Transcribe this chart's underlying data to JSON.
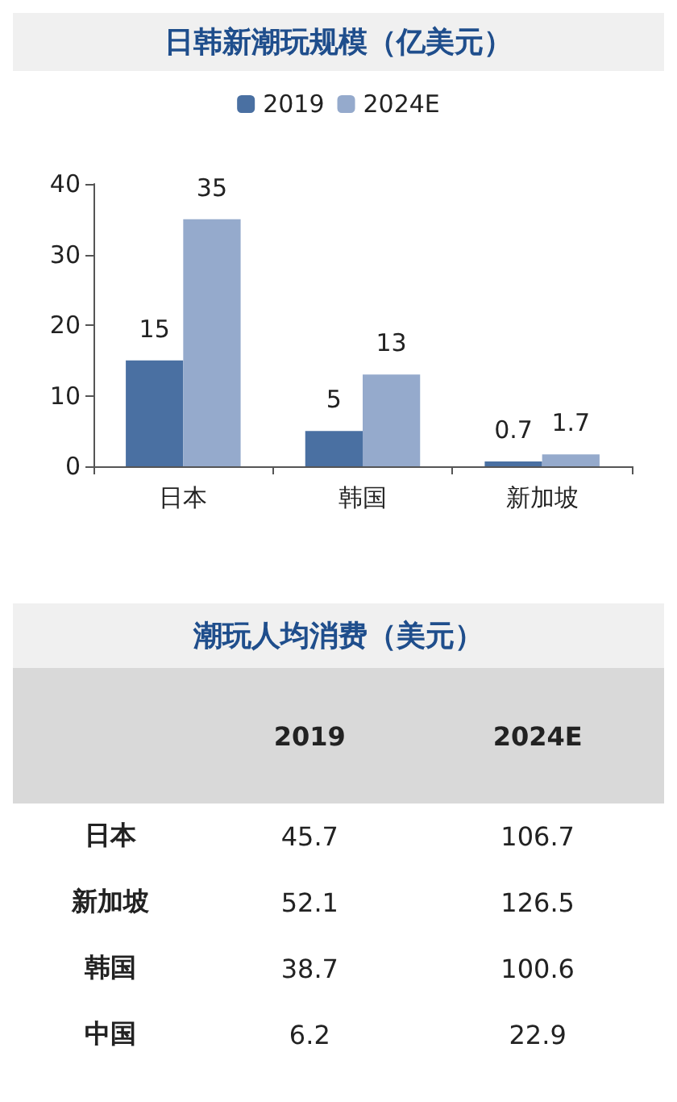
{
  "chart_data": [
    {
      "type": "bar",
      "title": "日韩新潮玩规模（亿美元）",
      "categories": [
        "日本",
        "韩国",
        "新加坡"
      ],
      "series": [
        {
          "name": "2019",
          "color": "#4a70a2",
          "values": [
            15,
            5,
            0.7
          ]
        },
        {
          "name": "2024E",
          "color": "#95aacc",
          "values": [
            35,
            13,
            1.7
          ]
        }
      ],
      "ylim": [
        0,
        40
      ],
      "yticks": [
        0,
        10,
        20,
        30,
        40
      ],
      "grid": false,
      "legend": "top",
      "data_labels": true
    },
    {
      "type": "other",
      "title": "潮玩人均消费（美元）",
      "categories": [
        "日本",
        "新加坡",
        "韩国",
        "中国"
      ],
      "series": [
        {
          "name": "2019",
          "values": [
            45.7,
            52.1,
            38.7,
            6.2
          ]
        },
        {
          "name": "2024E",
          "values": [
            106.7,
            126.5,
            100.6,
            22.9
          ]
        }
      ],
      "data_labels": true
    }
  ]
}
